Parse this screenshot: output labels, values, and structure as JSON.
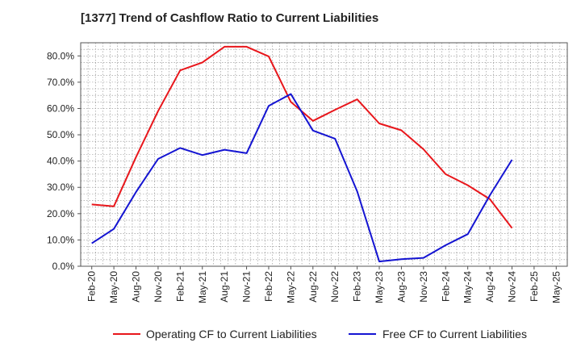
{
  "chart_data": {
    "type": "line",
    "title": "[1377]  Trend of Cashflow Ratio to Current Liabilities",
    "xlabel": "",
    "ylabel": "",
    "ylim": [
      0,
      85
    ],
    "y_ticks": [
      "0.0%",
      "10.0%",
      "20.0%",
      "30.0%",
      "40.0%",
      "50.0%",
      "60.0%",
      "70.0%",
      "80.0%"
    ],
    "y_tick_values": [
      0,
      10,
      20,
      30,
      40,
      50,
      60,
      70,
      80
    ],
    "x": [
      "Feb-20",
      "May-20",
      "Aug-20",
      "Nov-20",
      "Feb-21",
      "May-21",
      "Aug-21",
      "Nov-21",
      "Feb-22",
      "May-22",
      "Aug-22",
      "Nov-22",
      "Feb-23",
      "May-23",
      "Aug-23",
      "Nov-23",
      "Feb-24",
      "May-24",
      "Aug-24",
      "Nov-24",
      "Feb-25",
      "May-25"
    ],
    "grid": true,
    "legend_position": "bottom",
    "series": [
      {
        "name": "Operating CF to Current Liabilities",
        "color": "#e8161b",
        "values": [
          23.5,
          22.8,
          41.5,
          59.0,
          74.5,
          77.5,
          83.5,
          83.5,
          79.8,
          62.5,
          55.3,
          59.5,
          63.5,
          54.3,
          51.7,
          44.5,
          35.0,
          30.8,
          25.5,
          14.5,
          null,
          null
        ]
      },
      {
        "name": "Free CF to Current Liabilities",
        "color": "#1414d2",
        "values": [
          8.7,
          14.2,
          28.2,
          40.8,
          45.0,
          42.3,
          44.3,
          43.0,
          61.0,
          65.5,
          51.6,
          48.5,
          28.5,
          1.8,
          2.7,
          3.2,
          8.0,
          12.2,
          27.0,
          40.5,
          null,
          null
        ]
      }
    ]
  }
}
